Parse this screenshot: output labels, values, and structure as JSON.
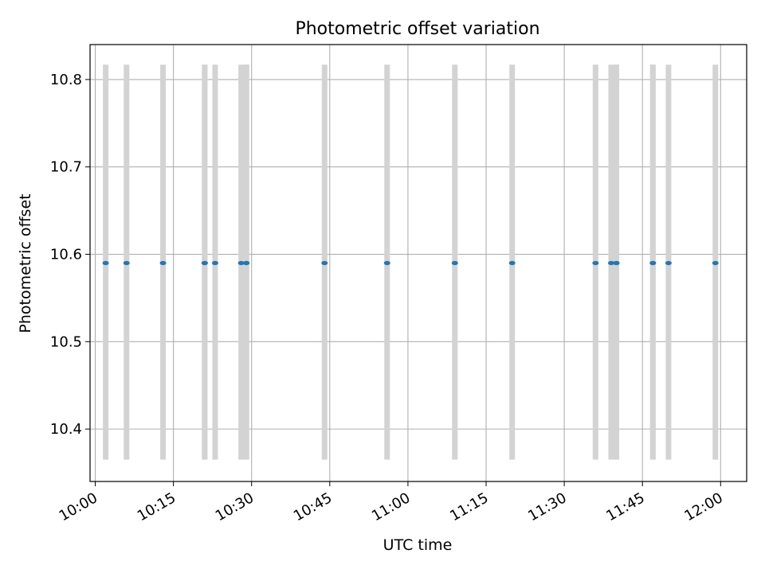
{
  "chart_data": {
    "type": "scatter",
    "title": "Photometric offset variation",
    "xlabel": "UTC time",
    "ylabel": "Photometric offset",
    "grid": true,
    "x_unit": "UTC time (HH:MM)",
    "xlim": [
      "09:59",
      "12:05"
    ],
    "ylim": [
      10.34,
      10.84
    ],
    "x_ticks": [
      "10:00",
      "10:15",
      "10:30",
      "10:45",
      "11:00",
      "11:15",
      "11:30",
      "11:45",
      "12:00"
    ],
    "y_ticks": [
      "10.4",
      "10.5",
      "10.6",
      "10.7",
      "10.8"
    ],
    "band_range": [
      10.365,
      10.817
    ],
    "colors": {
      "points": "#1f77b4",
      "bands": "#d3d3d3",
      "grid": "#b0b0b0"
    },
    "series": [
      {
        "x": [
          "10:02",
          "10:06",
          "10:13",
          "10:21",
          "10:21",
          "10:23",
          "10:28",
          "10:29",
          "10:29",
          "10:44",
          "10:56",
          "11:09",
          "11:20",
          "11:36",
          "11:39",
          "11:40",
          "11:40",
          "11:47",
          "11:47",
          "11:50",
          "11:59"
        ],
        "y": [
          10.59,
          10.59,
          10.59,
          10.59,
          10.59,
          10.59,
          10.59,
          10.59,
          10.59,
          10.59,
          10.59,
          10.59,
          10.59,
          10.59,
          10.59,
          10.59,
          10.59,
          10.59,
          10.59,
          10.59,
          10.59
        ]
      }
    ]
  }
}
